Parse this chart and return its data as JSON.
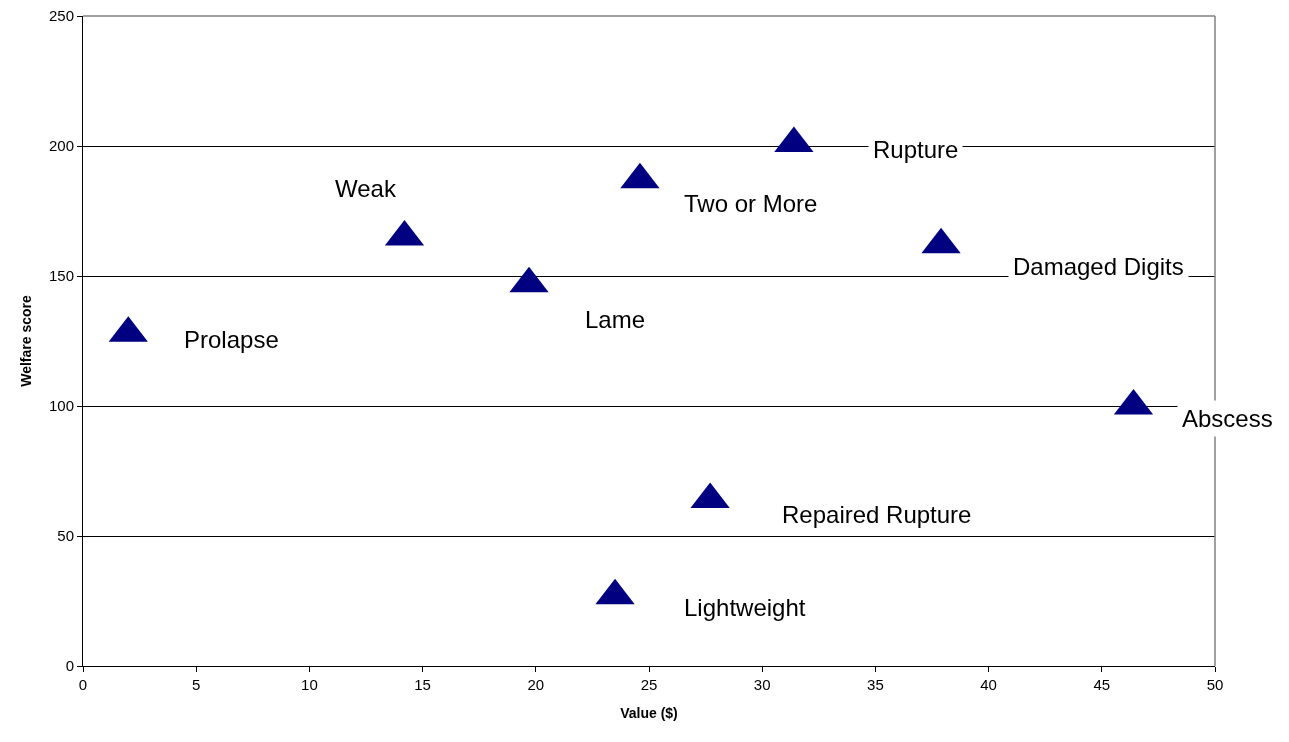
{
  "chart_data": {
    "type": "scatter",
    "xlabel": "Value ($)",
    "ylabel": "Welfare score",
    "x": [
      2.0,
      14.2,
      19.7,
      24.6,
      31.4,
      37.9,
      46.4,
      27.7,
      23.5
    ],
    "series": [
      {
        "color": "#000080",
        "values": [
          128,
          165,
          147,
          187,
          201,
          162,
          100,
          64,
          27
        ]
      }
    ],
    "xlim": [
      0,
      50
    ],
    "xticks": [
      0,
      5,
      10,
      15,
      20,
      25,
      30,
      35,
      40,
      45,
      50
    ],
    "ylim": [
      0,
      250
    ],
    "yticks": [
      0,
      50,
      100,
      150,
      200,
      250
    ],
    "grid": "y",
    "legend": false,
    "marker": "triangle",
    "annotations": [
      "Prolapse",
      "Weak",
      "Lame",
      "Two or More",
      "Rupture",
      "Damaged Digits",
      "Abscess",
      "Repaired Rupture",
      "Lightweight"
    ]
  }
}
